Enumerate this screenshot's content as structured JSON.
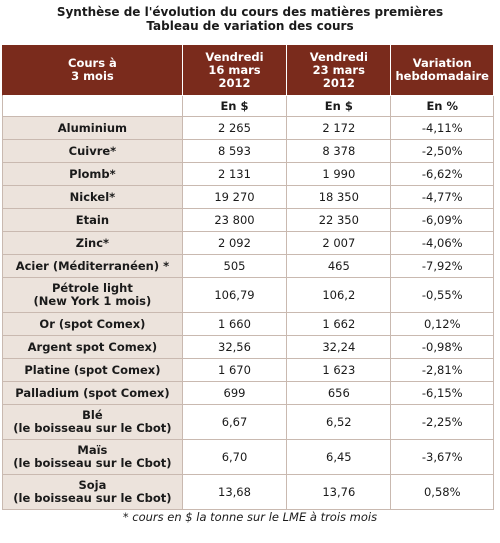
{
  "title": {
    "line1": "Synthèse de l'évolution du cours des matières premières",
    "line2": "Tableau de variation des cours"
  },
  "headers": {
    "col1": [
      "Cours à",
      "3 mois"
    ],
    "col2": [
      "Vendredi",
      "16 mars",
      "2012"
    ],
    "col3": [
      "Vendredi",
      "23 mars",
      "2012"
    ],
    "col4": [
      "Variation",
      "hebdomadaire"
    ]
  },
  "units": [
    "",
    "En $",
    "En $",
    "En %"
  ],
  "rows": [
    {
      "name": [
        "Aluminium"
      ],
      "v1": "2 265",
      "v2": "2 172",
      "var": "-4,11%"
    },
    {
      "name": [
        "Cuivre*"
      ],
      "v1": "8 593",
      "v2": "8 378",
      "var": "-2,50%"
    },
    {
      "name": [
        "Plomb*"
      ],
      "v1": "2 131",
      "v2": "1 990",
      "var": "-6,62%"
    },
    {
      "name": [
        "Nickel*"
      ],
      "v1": "19 270",
      "v2": "18 350",
      "var": "-4,77%"
    },
    {
      "name": [
        "Etain"
      ],
      "v1": "23 800",
      "v2": "22 350",
      "var": "-6,09%"
    },
    {
      "name": [
        "Zinc*"
      ],
      "v1": "2 092",
      "v2": "2 007",
      "var": "-4,06%"
    },
    {
      "name": [
        "Acier (Méditerranéen) *"
      ],
      "v1": "505",
      "v2": "465",
      "var": "-7,92%"
    },
    {
      "name": [
        "Pétrole light",
        "(New York 1 mois)"
      ],
      "v1": "106,79",
      "v2": "106,2",
      "var": "-0,55%"
    },
    {
      "name": [
        "Or (spot Comex)"
      ],
      "v1": "1 660",
      "v2": "1 662",
      "var": "0,12%"
    },
    {
      "name": [
        "Argent spot Comex)"
      ],
      "v1": "32,56",
      "v2": "32,24",
      "var": "-0,98%"
    },
    {
      "name": [
        "Platine (spot Comex)"
      ],
      "v1": "1 670",
      "v2": "1 623",
      "var": "-2,81%"
    },
    {
      "name": [
        "Palladium (spot Comex)"
      ],
      "v1": "699",
      "v2": "656",
      "var": "-6,15%"
    },
    {
      "name": [
        "Blé",
        "(le boisseau sur le Cbot)"
      ],
      "v1": "6,67",
      "v2": "6,52",
      "var": "-2,25%"
    },
    {
      "name": [
        "Maïs",
        "(le boisseau sur le Cbot)"
      ],
      "v1": "6,70",
      "v2": "6,45",
      "var": "-3,67%"
    },
    {
      "name": [
        "Soja",
        "(le boisseau sur le Cbot)"
      ],
      "v1": "13,68",
      "v2": "13,76",
      "var": "0,58%"
    }
  ],
  "footnote": "* cours en $ la tonne sur le LME à trois mois"
}
